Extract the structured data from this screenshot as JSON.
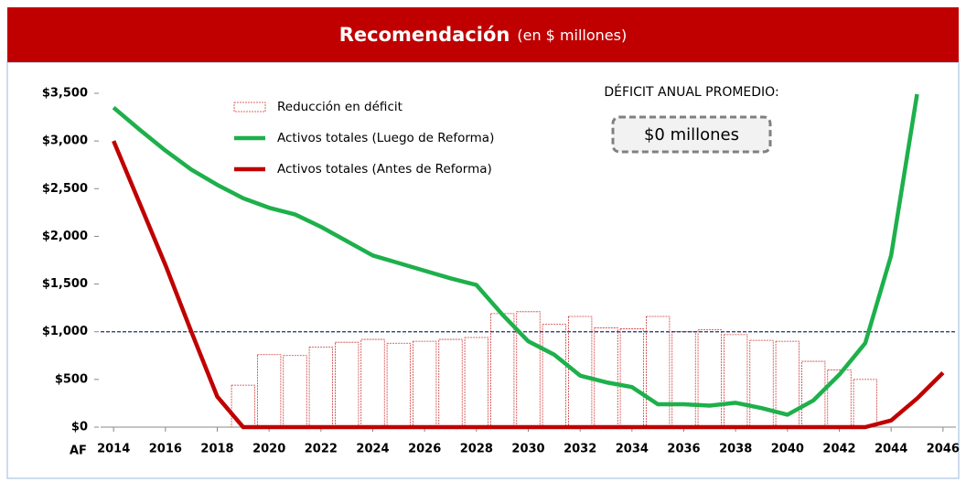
{
  "chart_data": {
    "type": "combo",
    "title": "Recomendación",
    "subtitle": "(en $ millones)",
    "x_axis_label": "AF",
    "x": [
      2014,
      2015,
      2016,
      2017,
      2018,
      2019,
      2020,
      2021,
      2022,
      2023,
      2024,
      2025,
      2026,
      2027,
      2028,
      2029,
      2030,
      2031,
      2032,
      2033,
      2034,
      2035,
      2036,
      2037,
      2038,
      2039,
      2040,
      2041,
      2042,
      2043,
      2044,
      2045,
      2046
    ],
    "series": [
      {
        "name": "Reducción en déficit",
        "type": "bar",
        "color": "#d03a3a",
        "values": [
          null,
          null,
          null,
          null,
          null,
          440,
          760,
          750,
          840,
          890,
          920,
          880,
          900,
          920,
          940,
          1190,
          1210,
          1080,
          1160,
          1040,
          1030,
          1160,
          1000,
          1020,
          970,
          910,
          900,
          690,
          600,
          500,
          null,
          null,
          null
        ]
      },
      {
        "name": "Activos totales (Luego de Reforma)",
        "type": "line",
        "color": "#1db04b",
        "values": [
          3350,
          3120,
          2900,
          2700,
          2540,
          2400,
          2300,
          2230,
          2100,
          1950,
          1800,
          1720,
          1640,
          1560,
          1490,
          1180,
          900,
          760,
          540,
          470,
          420,
          240,
          240,
          225,
          255,
          200,
          130,
          280,
          550,
          880,
          1800,
          3490,
          null
        ]
      },
      {
        "name": "Activos totales (Antes de Reforma)",
        "type": "line",
        "color": "#c00000",
        "values": [
          3000,
          2350,
          1700,
          1000,
          320,
          0,
          0,
          0,
          0,
          0,
          0,
          0,
          0,
          0,
          0,
          0,
          0,
          0,
          0,
          0,
          0,
          0,
          0,
          0,
          0,
          0,
          0,
          0,
          0,
          0,
          70,
          300,
          570
        ]
      }
    ],
    "reference_line": 1000,
    "reference_color": "#1f2f6f",
    "xlim": [
      2013.5,
      2046.5
    ],
    "xticks": [
      2014,
      2016,
      2018,
      2020,
      2022,
      2024,
      2026,
      2028,
      2030,
      2032,
      2034,
      2036,
      2038,
      2040,
      2042,
      2044,
      2046
    ],
    "ylim": [
      0,
      3500
    ],
    "yticks": [
      {
        "value": 0,
        "label": "$0"
      },
      {
        "value": 500,
        "label": "$500"
      },
      {
        "value": 1000,
        "label": "$1,000"
      },
      {
        "value": 1500,
        "label": "$1,500"
      },
      {
        "value": 2000,
        "label": "$2,000"
      },
      {
        "value": 2500,
        "label": "$2,500"
      },
      {
        "value": 3000,
        "label": "$3,000"
      },
      {
        "value": 3500,
        "label": "$3,500"
      }
    ],
    "annotation_title": "DÉFICIT ANUAL PROMEDIO:",
    "annotation_value": "$0 millones",
    "header_color": "#c00000"
  }
}
